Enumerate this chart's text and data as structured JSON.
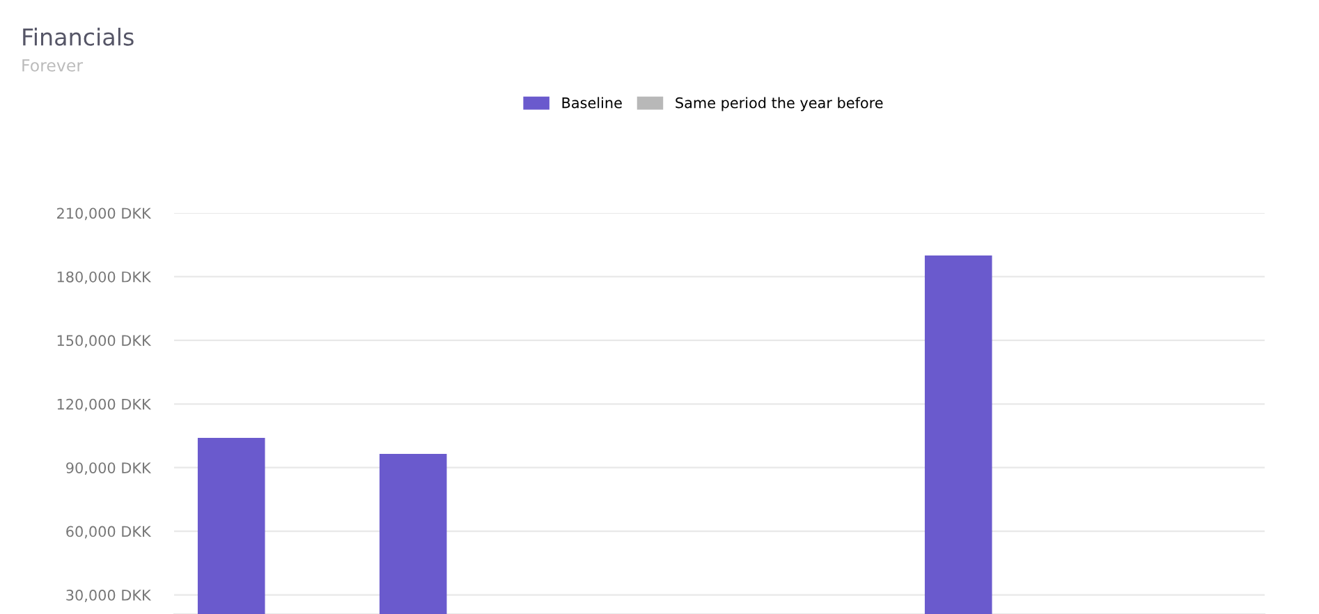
{
  "chart_data": {
    "type": "bar",
    "title": "Financials",
    "subtitle": "Forever",
    "categories": [
      null,
      null,
      null,
      null,
      null,
      null
    ],
    "series": [
      {
        "name": "Baseline",
        "color": "#6a5acd",
        "values": [
          104000,
          96500,
          null,
          null,
          190000,
          null
        ]
      },
      {
        "name": "Same period the year before",
        "color": "#b8b8b8",
        "values": [
          null,
          null,
          null,
          null,
          null,
          null
        ]
      }
    ],
    "ylim": [
      21000,
      210000
    ],
    "yticks": [
      {
        "value": 30000,
        "label": "30,000 DKK"
      },
      {
        "value": 60000,
        "label": "60,000 DKK"
      },
      {
        "value": 90000,
        "label": "90,000 DKK"
      },
      {
        "value": 120000,
        "label": "120,000 DKK"
      },
      {
        "value": 150000,
        "label": "150,000 DKK"
      },
      {
        "value": 180000,
        "label": "180,000 DKK"
      },
      {
        "value": 210000,
        "label": "210,000 DKK"
      }
    ],
    "grid": "y",
    "legend": "top",
    "tick_labels": "y"
  }
}
